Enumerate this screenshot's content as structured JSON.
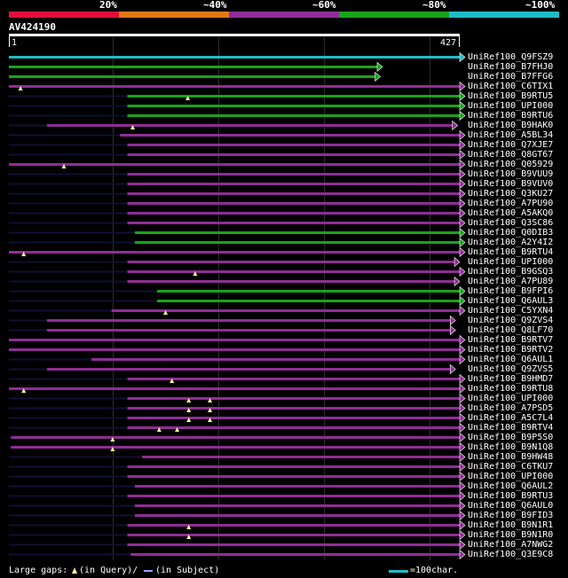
{
  "scale": {
    "labels": [
      "20%",
      "~40%",
      "~60%",
      "~80%",
      "~100%"
    ],
    "colors": [
      "#e0103a",
      "#e07818",
      "#902d96",
      "#1aa21a",
      "#1fbcc5"
    ]
  },
  "query": {
    "name": "AV424190",
    "start": "1",
    "end": "427",
    "length": 427
  },
  "hits": [
    {
      "name": "UniRef100_Q9FSZ9",
      "color": "teal",
      "start": 1,
      "end": 427,
      "gaps": []
    },
    {
      "name": "UniRef100_B7FHJ0",
      "color": "green",
      "start": 1,
      "end": 349,
      "gaps": []
    },
    {
      "name": "UniRef100_B7FFG6",
      "color": "green",
      "start": 1,
      "end": 347,
      "gaps": []
    },
    {
      "name": "UniRef100_C6TIX1",
      "color": "purple",
      "start": 1,
      "end": 427,
      "gaps": [
        12
      ]
    },
    {
      "name": "UniRef100_B9RTU5",
      "color": "green",
      "start": 113,
      "end": 427,
      "gaps": [
        170
      ]
    },
    {
      "name": "UniRef100_UPI000",
      "color": "green",
      "start": 113,
      "end": 427,
      "gaps": []
    },
    {
      "name": "UniRef100_B9RTU6",
      "color": "green",
      "start": 113,
      "end": 427,
      "gaps": []
    },
    {
      "name": "UniRef100_B9HAK0",
      "color": "purple",
      "start": 37,
      "end": 420,
      "gaps": [
        118
      ]
    },
    {
      "name": "UniRef100_A5BL34",
      "color": "purple",
      "start": 106,
      "end": 427,
      "gaps": []
    },
    {
      "name": "UniRef100_Q7XJE7",
      "color": "purple",
      "start": 113,
      "end": 427,
      "gaps": []
    },
    {
      "name": "UniRef100_Q8GT67",
      "color": "purple",
      "start": 113,
      "end": 427,
      "gaps": []
    },
    {
      "name": "UniRef100_Q05929",
      "color": "purple",
      "start": 1,
      "end": 427,
      "gaps": [
        53
      ]
    },
    {
      "name": "UniRef100_B9VUU9",
      "color": "purple",
      "start": 113,
      "end": 427,
      "gaps": []
    },
    {
      "name": "UniRef100_B9VUV0",
      "color": "purple",
      "start": 113,
      "end": 427,
      "gaps": []
    },
    {
      "name": "UniRef100_Q3KU27",
      "color": "purple",
      "start": 113,
      "end": 427,
      "gaps": []
    },
    {
      "name": "UniRef100_A7PU90",
      "color": "purple",
      "start": 113,
      "end": 427,
      "gaps": []
    },
    {
      "name": "UniRef100_A5AKQ0",
      "color": "purple",
      "start": 113,
      "end": 427,
      "gaps": []
    },
    {
      "name": "UniRef100_Q3SC86",
      "color": "purple",
      "start": 113,
      "end": 427,
      "gaps": []
    },
    {
      "name": "UniRef100_Q0DIB3",
      "color": "green",
      "start": 120,
      "end": 427,
      "gaps": []
    },
    {
      "name": "UniRef100_A2Y4I2",
      "color": "green",
      "start": 120,
      "end": 427,
      "gaps": []
    },
    {
      "name": "UniRef100_B9RTU4",
      "color": "purple",
      "start": 1,
      "end": 427,
      "gaps": [
        15
      ]
    },
    {
      "name": "UniRef100_UPI000",
      "color": "purple",
      "start": 113,
      "end": 422,
      "gaps": []
    },
    {
      "name": "UniRef100_B9GSQ3",
      "color": "purple",
      "start": 113,
      "end": 427,
      "gaps": [
        177
      ]
    },
    {
      "name": "UniRef100_A7PU89",
      "color": "purple",
      "start": 113,
      "end": 422,
      "gaps": []
    },
    {
      "name": "UniRef100_B9FPI6",
      "color": "green",
      "start": 141,
      "end": 427,
      "gaps": []
    },
    {
      "name": "UniRef100_Q6AUL3",
      "color": "green",
      "start": 141,
      "end": 427,
      "gaps": []
    },
    {
      "name": "UniRef100_C5YXN4",
      "color": "purple",
      "start": 98,
      "end": 427,
      "gaps": [
        149
      ]
    },
    {
      "name": "UniRef100_Q9ZVS4",
      "color": "purple",
      "start": 37,
      "end": 418,
      "gaps": []
    },
    {
      "name": "UniRef100_Q8LF70",
      "color": "purple",
      "start": 37,
      "end": 418,
      "gaps": []
    },
    {
      "name": "UniRef100_B9RTV7",
      "color": "purple",
      "start": 1,
      "end": 427,
      "gaps": []
    },
    {
      "name": "UniRef100_B9RTV2",
      "color": "purple",
      "start": 1,
      "end": 427,
      "gaps": []
    },
    {
      "name": "UniRef100_Q6AUL1",
      "color": "purple",
      "start": 79,
      "end": 427,
      "gaps": []
    },
    {
      "name": "UniRef100_Q9ZVS5",
      "color": "purple",
      "start": 37,
      "end": 418,
      "gaps": []
    },
    {
      "name": "UniRef100_B9HMD7",
      "color": "purple",
      "start": 113,
      "end": 427,
      "gaps": [
        155
      ]
    },
    {
      "name": "UniRef100_B9RTU8",
      "color": "purple",
      "start": 1,
      "end": 427,
      "gaps": [
        15
      ]
    },
    {
      "name": "UniRef100_UPI000",
      "color": "purple",
      "start": 113,
      "end": 427,
      "gaps": [
        171,
        191
      ]
    },
    {
      "name": "UniRef100_A7PSD5",
      "color": "purple",
      "start": 113,
      "end": 427,
      "gaps": [
        171,
        191
      ]
    },
    {
      "name": "UniRef100_A5C7L4",
      "color": "purple",
      "start": 113,
      "end": 427,
      "gaps": [
        171,
        191
      ]
    },
    {
      "name": "UniRef100_B9RTV4",
      "color": "purple",
      "start": 113,
      "end": 427,
      "gaps": [
        143,
        160
      ]
    },
    {
      "name": "UniRef100_B9P5S0",
      "color": "purple",
      "start": 3,
      "end": 427,
      "gaps": [
        99
      ]
    },
    {
      "name": "UniRef100_B9N1Q8",
      "color": "purple",
      "start": 3,
      "end": 427,
      "gaps": [
        99
      ]
    },
    {
      "name": "UniRef100_B9HW48",
      "color": "purple",
      "start": 127,
      "end": 427,
      "gaps": []
    },
    {
      "name": "UniRef100_C6TKU7",
      "color": "purple",
      "start": 113,
      "end": 427,
      "gaps": []
    },
    {
      "name": "UniRef100_UPI000",
      "color": "purple",
      "start": 113,
      "end": 427,
      "gaps": []
    },
    {
      "name": "UniRef100_Q6AUL2",
      "color": "purple",
      "start": 120,
      "end": 427,
      "gaps": []
    },
    {
      "name": "UniRef100_B9RTU3",
      "color": "purple",
      "start": 113,
      "end": 427,
      "gaps": []
    },
    {
      "name": "UniRef100_Q6AUL0",
      "color": "purple",
      "start": 120,
      "end": 427,
      "gaps": []
    },
    {
      "name": "UniRef100_B9FID3",
      "color": "purple",
      "start": 120,
      "end": 427,
      "gaps": []
    },
    {
      "name": "UniRef100_B9N1R1",
      "color": "purple",
      "start": 113,
      "end": 427,
      "gaps": [
        171
      ]
    },
    {
      "name": "UniRef100_B9N1R0",
      "color": "purple",
      "start": 113,
      "end": 427,
      "gaps": [
        171
      ]
    },
    {
      "name": "UniRef100_A7NWG2",
      "color": "purple",
      "start": 113,
      "end": 427,
      "gaps": []
    },
    {
      "name": "UniRef100_Q3E9C8",
      "color": "purple",
      "start": 116,
      "end": 427,
      "gaps": []
    }
  ],
  "legend": {
    "large_gaps": "Large gaps:",
    "in_query": "(in Query)/",
    "in_subject": "(in Subject)",
    "scale_note": "=100char."
  }
}
